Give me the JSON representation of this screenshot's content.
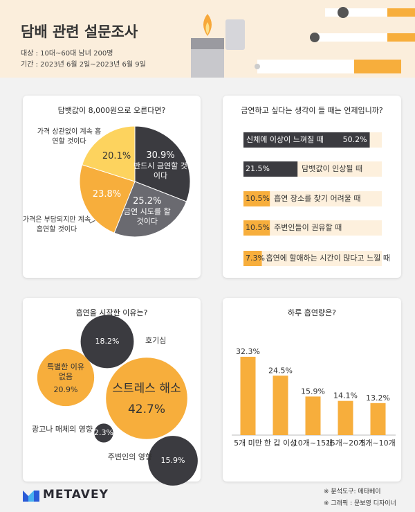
{
  "header": {
    "title": "담배 관련 설문조사",
    "lines": [
      "대상 : 10대~60대 남녀 200명",
      "기간 : 2023년 6월 2일~2023년 6월 9일"
    ]
  },
  "chart_data": [
    {
      "type": "pie",
      "title": "담뱃값이 8,000원으로 오른다면?",
      "categories": [
        "반드시 금연할 것이다",
        "금연 시도를 할 것이다",
        "가격은 부담되지만 계속 흡연할 것이다",
        "가격 상관없이 계속 흡연할 것이다"
      ],
      "values": [
        30.9,
        25.2,
        23.8,
        20.1
      ],
      "value_labels": [
        "30.9%",
        "25.2%",
        "23.8%",
        "20.1%"
      ],
      "colors": [
        "#3b3b40",
        "#6a6a70",
        "#f7ae3c",
        "#fdd35e"
      ]
    },
    {
      "type": "hbar",
      "title": "금연하고 싶다는 생각이 들 때는 언제입니까?",
      "categories": [
        "신체에 이상이 느껴질 때",
        "담뱃값이 인상될 때",
        "흡연 장소를 찾기 어려울 때",
        "주변인들이 권유할 때",
        "흡연에 할애하는 시간이 많다고 느낄 때"
      ],
      "values": [
        50.2,
        21.5,
        10.5,
        10.5,
        7.3
      ],
      "value_labels": [
        "50.2%",
        "21.5%",
        "10.5%",
        "10.5%",
        "7.3%"
      ],
      "colors": [
        "#3b3b40",
        "#3b3b40",
        "#f7ae3c",
        "#f7ae3c",
        "#f7ae3c"
      ],
      "xlim": [
        0,
        55
      ]
    },
    {
      "type": "bubble",
      "title": "흡연을 시작한 이유는?",
      "categories": [
        "호기심",
        "특별한 이유 없음",
        "스트레스 해소",
        "광고나 매체의 영향",
        "주변인의 영향"
      ],
      "values": [
        18.2,
        20.9,
        42.7,
        2.3,
        15.9
      ],
      "value_labels": [
        "18.2%",
        "20.9%",
        "42.7%",
        "2.3%",
        "15.9%"
      ],
      "colors": [
        "#3b3b40",
        "#f7ae3c",
        "#f7ae3c",
        "#3b3b40",
        "#3b3b40"
      ]
    },
    {
      "type": "bar",
      "title": "하루 흡연량은?",
      "categories": [
        "5개 미만",
        "한 갑 이상",
        "10개~15개",
        "15개~20개",
        "5개~10개"
      ],
      "values": [
        32.3,
        24.5,
        15.9,
        14.1,
        13.2
      ],
      "value_labels": [
        "32.3%",
        "24.5%",
        "15.9%",
        "14.1%",
        "13.2%"
      ],
      "color": "#f7ae3c",
      "ylim": [
        0,
        35
      ]
    }
  ],
  "footer": {
    "brand": "METAVEY",
    "notes": [
      "※ 분석도구: 메타베이",
      "※ 그래픽 : 문보영 디자이너"
    ]
  }
}
